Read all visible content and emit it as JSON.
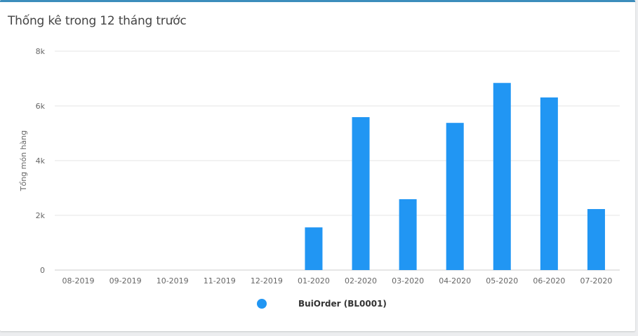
{
  "card": {
    "title": "Thống kê trong 12 tháng trước"
  },
  "colors": {
    "bar": "#2196f3",
    "card_border": "#3c8dbc",
    "grid": "#e6e6e6",
    "axis": "#cccccc"
  },
  "chart_data": {
    "type": "bar",
    "categories": [
      "08-2019",
      "09-2019",
      "10-2019",
      "11-2019",
      "12-2019",
      "01-2020",
      "02-2020",
      "03-2020",
      "04-2020",
      "05-2020",
      "06-2020",
      "07-2020"
    ],
    "series": [
      {
        "name": "BuiOrder (BL0001)",
        "values": [
          0,
          0,
          0,
          0,
          0,
          1560,
          5590,
          2590,
          5380,
          6840,
          6310,
          2230
        ]
      }
    ],
    "ylabel": "Tổng món hàng",
    "ylim": [
      0,
      8000
    ],
    "yticks": [
      0,
      2000,
      4000,
      6000,
      8000
    ],
    "ytick_labels": [
      "0",
      "2k",
      "4k",
      "6k",
      "8k"
    ],
    "grid": true,
    "legend_position": "bottom-center"
  }
}
